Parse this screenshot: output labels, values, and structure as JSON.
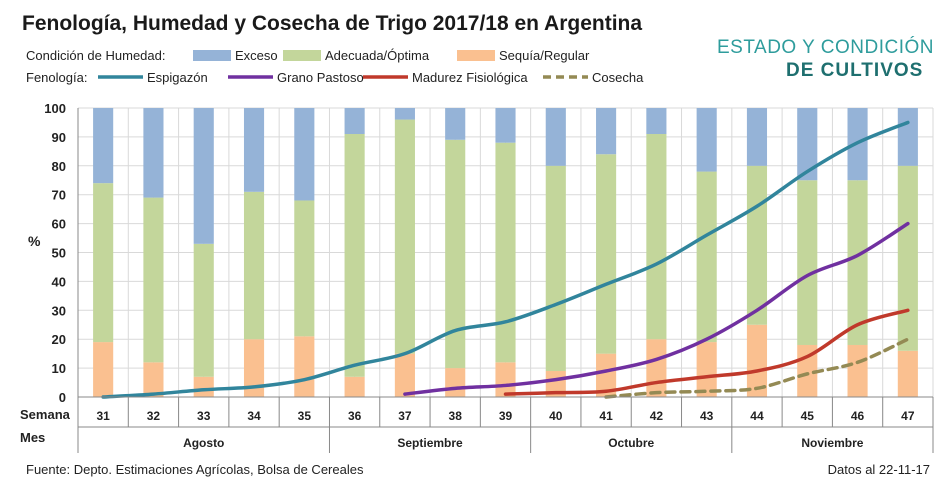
{
  "logo": {
    "line1": "ESTADO Y CONDICIÓN",
    "line2": "DE CULTIVOS"
  },
  "footer": {
    "source": "Fuente: Depto. Estimaciones Agrícolas, Bolsa de Cereales",
    "date": "Datos al 22-11-17"
  },
  "chart_data": {
    "type": "bar",
    "title": "Fenología, Humedad y Cosecha de Trigo 2017/18 en Argentina",
    "ylabel": "%",
    "ylim": [
      0,
      100
    ],
    "yticks": [
      0,
      10,
      20,
      30,
      40,
      50,
      60,
      70,
      80,
      90,
      100
    ],
    "grid": true,
    "legend_humidity_label": "Condición de Humedad:",
    "legend_phenology_label": "Fenología:",
    "xrow_labels": {
      "week": "Semana",
      "month": "Mes"
    },
    "categories": [
      "31",
      "32",
      "33",
      "34",
      "35",
      "36",
      "37",
      "38",
      "39",
      "40",
      "41",
      "42",
      "43",
      "44",
      "45",
      "46",
      "47"
    ],
    "months": [
      {
        "name": "Agosto",
        "span": 5
      },
      {
        "name": "Septiembre",
        "span": 4
      },
      {
        "name": "Octubre",
        "span": 4
      },
      {
        "name": "Noviembre",
        "span": 4
      }
    ],
    "bar_series": [
      {
        "name": "Sequía/Regular",
        "color": "#FAC090",
        "values": [
          19,
          12,
          7,
          20,
          21,
          7,
          15,
          10,
          12,
          9,
          15,
          20,
          19,
          25,
          18,
          18,
          16
        ]
      },
      {
        "name": "Adecuada/Óptima",
        "color": "#C3D69B",
        "values": [
          55,
          57,
          46,
          51,
          47,
          84,
          81,
          79,
          76,
          71,
          69,
          71,
          59,
          55,
          57,
          57,
          64
        ]
      },
      {
        "name": "Exceso",
        "color": "#95B3D7",
        "values": [
          26,
          31,
          47,
          29,
          32,
          9,
          4,
          11,
          12,
          20,
          16,
          9,
          22,
          20,
          25,
          25,
          20
        ]
      }
    ],
    "line_series": [
      {
        "name": "Espigazón",
        "color": "#31859C",
        "dashed": false,
        "values": [
          0,
          1,
          2.5,
          3.5,
          6,
          11,
          15,
          23,
          26,
          32,
          39,
          46,
          56,
          66,
          78,
          88,
          95
        ]
      },
      {
        "name": "Grano Pastoso",
        "color": "#7030A0",
        "dashed": false,
        "values": [
          null,
          null,
          null,
          null,
          null,
          null,
          1,
          3,
          4,
          6,
          9,
          13,
          20,
          30,
          42,
          49,
          60
        ]
      },
      {
        "name": "Madurez Fisiológica",
        "color": "#C0392B",
        "dashed": false,
        "values": [
          null,
          null,
          null,
          null,
          null,
          null,
          null,
          null,
          1,
          1.5,
          2,
          5,
          7,
          9,
          14,
          25,
          30
        ]
      },
      {
        "name": "Cosecha",
        "color": "#948A54",
        "dashed": true,
        "values": [
          null,
          null,
          null,
          null,
          null,
          null,
          null,
          null,
          null,
          null,
          0,
          1.5,
          2,
          3,
          8,
          12,
          20
        ]
      }
    ]
  }
}
